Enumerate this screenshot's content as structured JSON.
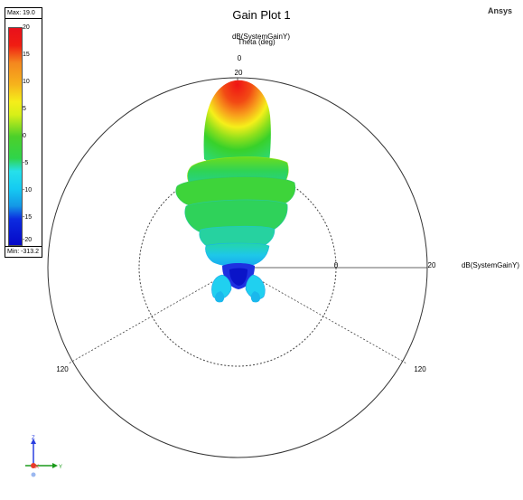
{
  "plot": {
    "title": "Gain Plot 1",
    "brand": "Ansys",
    "radial_quantity_top": "dB(SystemGainY)",
    "radial_quantity_top2": "Theta (deg)",
    "radial_quantity_right": "dB(SystemGainY)",
    "angle_top": "0",
    "scale_top": "20",
    "scale_center": "0",
    "scale_right": "20",
    "angle_left": "120",
    "angle_right": "120"
  },
  "legend": {
    "max_label": "Max: 19.0",
    "min_label": "Min: -313.2",
    "ticks": [
      "20",
      "15",
      "10",
      "5",
      "0",
      "-5",
      "-10",
      "-15",
      "-20"
    ]
  },
  "triad": {
    "z": "Z",
    "x": "X",
    "y": "Y"
  },
  "colors": {
    "red": "#f01414",
    "orange": "#f8a01c",
    "yellow": "#f5ef1a",
    "green": "#38d12a",
    "cyan": "#20d6f0",
    "blue": "#0a1ee0"
  }
}
